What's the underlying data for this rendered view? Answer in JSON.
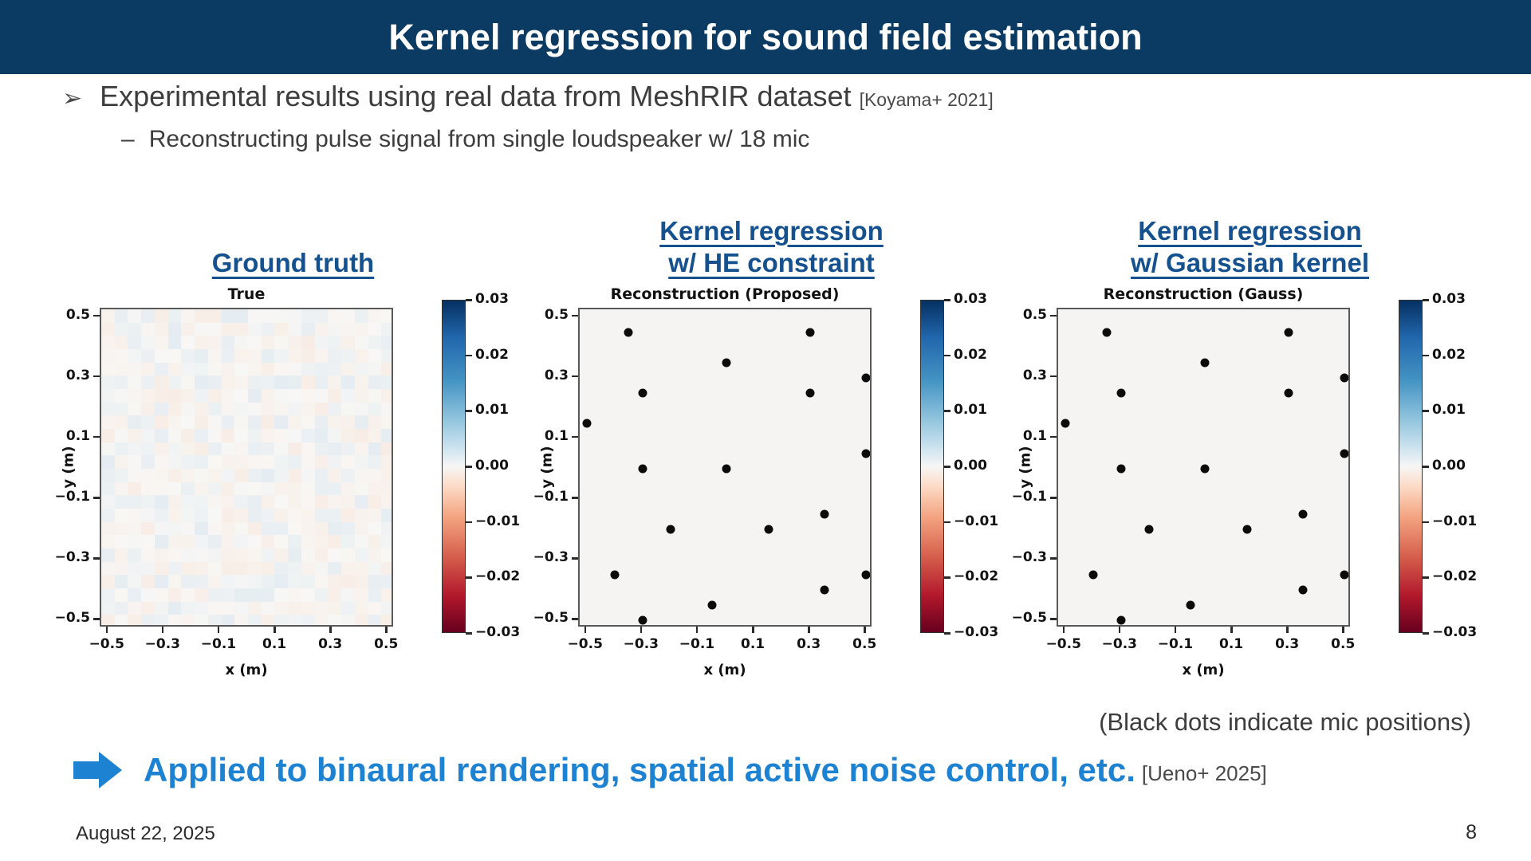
{
  "header": {
    "title": "Kernel regression for sound field estimation"
  },
  "bullets": {
    "main_marker": "➢",
    "main": "Experimental results using real data from MeshRIR dataset",
    "main_ref": "[Koyama+ 2021]",
    "sub_marker": "–",
    "sub": "Reconstructing pulse signal from single loudspeaker w/ 18 mic"
  },
  "column_headings": [
    {
      "lines": [
        "Ground truth",
        ""
      ]
    },
    {
      "lines": [
        "Kernel regression",
        "w/ HE constraint"
      ]
    },
    {
      "lines": [
        "Kernel regression",
        "w/ Gaussian kernel"
      ]
    }
  ],
  "chart_data": [
    {
      "type": "heatmap",
      "title": "True",
      "xlabel": "x (m)",
      "ylabel": "y (m)",
      "xlim": [
        -0.525,
        0.525
      ],
      "ylim": [
        -0.525,
        0.525
      ],
      "xticks": [
        -0.5,
        -0.3,
        -0.1,
        0.1,
        0.3,
        0.5
      ],
      "yticks": [
        0.5,
        0.3,
        0.1,
        -0.1,
        -0.3,
        -0.5
      ],
      "grid": false,
      "values_description": "true pressure field, nearly zero everywhere (faint ±0.003 noise, appears almost white)",
      "noise": {
        "seed": 7,
        "cols": 22,
        "rows": 24,
        "amplitude": 0.003
      },
      "colorbar": {
        "ticks": [
          0.03,
          0.02,
          0.01,
          0.0,
          -0.01,
          -0.02,
          -0.03
        ],
        "range": [
          -0.03,
          0.03
        ],
        "cmap": "RdBu (blue=+0.03 top, white=0, red=-0.03 bottom)"
      }
    },
    {
      "type": "scatter",
      "title": "Reconstruction (Proposed)",
      "xlabel": "x (m)",
      "ylabel": "y (m)",
      "xlim": [
        -0.525,
        0.525
      ],
      "ylim": [
        -0.525,
        0.525
      ],
      "xticks": [
        -0.5,
        -0.3,
        -0.1,
        0.1,
        0.3,
        0.5
      ],
      "yticks": [
        0.5,
        0.3,
        0.1,
        -0.1,
        -0.3,
        -0.5
      ],
      "grid": false,
      "field_description": "reconstructed field, nearly zero (appears almost white)",
      "points": [
        [
          -0.35,
          0.45
        ],
        [
          0.3,
          0.45
        ],
        [
          0.0,
          0.35
        ],
        [
          0.5,
          0.3
        ],
        [
          -0.3,
          0.25
        ],
        [
          0.3,
          0.25
        ],
        [
          -0.5,
          0.15
        ],
        [
          0.5,
          0.05
        ],
        [
          -0.3,
          0.0
        ],
        [
          0.0,
          0.0
        ],
        [
          0.35,
          -0.15
        ],
        [
          -0.2,
          -0.2
        ],
        [
          0.15,
          -0.2
        ],
        [
          -0.4,
          -0.35
        ],
        [
          0.5,
          -0.35
        ],
        [
          0.35,
          -0.4
        ],
        [
          -0.05,
          -0.45
        ],
        [
          -0.3,
          -0.5
        ]
      ],
      "points_meaning": "18 microphone positions (black dots)",
      "colorbar": {
        "ticks": [
          0.03,
          0.02,
          0.01,
          0.0,
          -0.01,
          -0.02,
          -0.03
        ],
        "range": [
          -0.03,
          0.03
        ],
        "cmap": "RdBu (blue=+0.03 top, white=0, red=-0.03 bottom)"
      }
    },
    {
      "type": "scatter",
      "title": "Reconstruction (Gauss)",
      "xlabel": "x (m)",
      "ylabel": "y (m)",
      "xlim": [
        -0.525,
        0.525
      ],
      "ylim": [
        -0.525,
        0.525
      ],
      "xticks": [
        -0.5,
        -0.3,
        -0.1,
        0.1,
        0.3,
        0.5
      ],
      "yticks": [
        0.5,
        0.3,
        0.1,
        -0.1,
        -0.3,
        -0.5
      ],
      "grid": false,
      "field_description": "reconstructed field, nearly zero (appears almost white)",
      "points": [
        [
          -0.35,
          0.45
        ],
        [
          0.3,
          0.45
        ],
        [
          0.0,
          0.35
        ],
        [
          0.5,
          0.3
        ],
        [
          -0.3,
          0.25
        ],
        [
          0.3,
          0.25
        ],
        [
          -0.5,
          0.15
        ],
        [
          0.5,
          0.05
        ],
        [
          -0.3,
          0.0
        ],
        [
          0.0,
          0.0
        ],
        [
          0.35,
          -0.15
        ],
        [
          -0.2,
          -0.2
        ],
        [
          0.15,
          -0.2
        ],
        [
          -0.4,
          -0.35
        ],
        [
          0.5,
          -0.35
        ],
        [
          0.35,
          -0.4
        ],
        [
          -0.05,
          -0.45
        ],
        [
          -0.3,
          -0.5
        ]
      ],
      "points_meaning": "18 microphone positions (black dots)",
      "colorbar": {
        "ticks": [
          0.03,
          0.02,
          0.01,
          0.0,
          -0.01,
          -0.02,
          -0.03
        ],
        "range": [
          -0.03,
          0.03
        ],
        "cmap": "RdBu (blue=+0.03 top, white=0, red=-0.03 bottom)"
      }
    }
  ],
  "caption": "(Black dots indicate mic positions)",
  "conclusion": {
    "text": "Applied to binaural rendering, spatial active noise control, etc.",
    "ref": "[Ueno+ 2025]"
  },
  "footer": {
    "date": "August 22, 2025",
    "page": "8"
  },
  "colors": {
    "header_bg": "#0b3a63",
    "heading_blue": "#15518f",
    "conclusion_blue": "#1e82d2",
    "body_text": "#3d3d3d",
    "mic_dot": "#0b0b0b"
  }
}
